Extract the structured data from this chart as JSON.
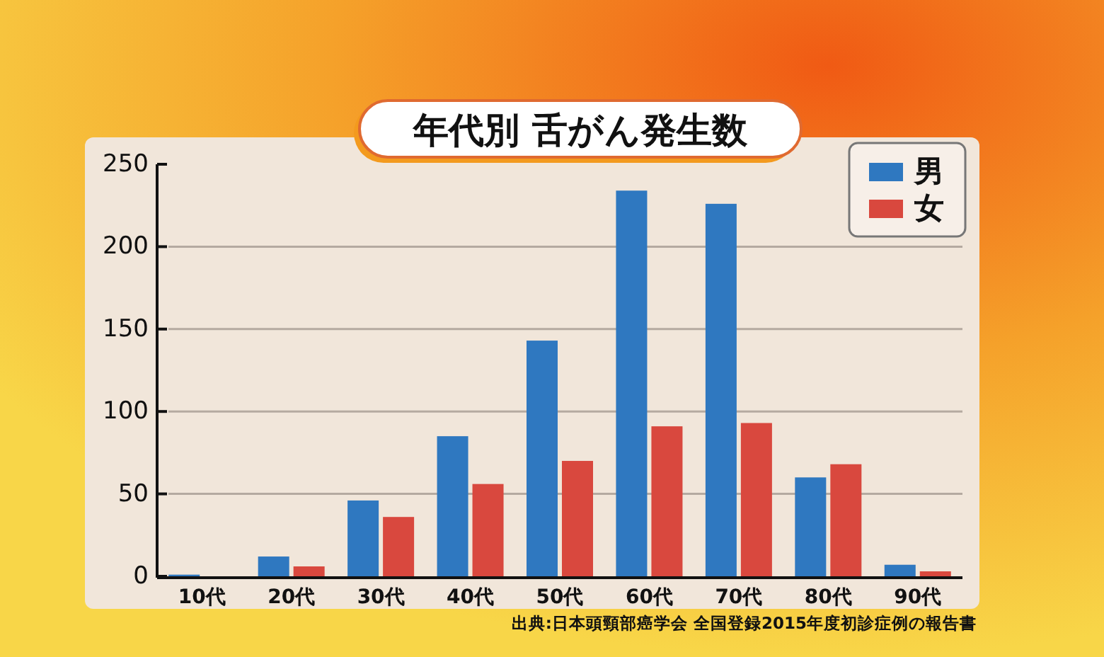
{
  "chart_data": {
    "type": "bar",
    "title": "年代別 舌がん発生数",
    "categories": [
      "10代",
      "20代",
      "30代",
      "40代",
      "50代",
      "60代",
      "70代",
      "80代",
      "90代"
    ],
    "series": [
      {
        "name": "男",
        "color": "#2f78c0",
        "values": [
          1,
          12,
          46,
          85,
          143,
          234,
          226,
          60,
          7
        ]
      },
      {
        "name": "女",
        "color": "#d9483e",
        "values": [
          0,
          6,
          36,
          56,
          70,
          91,
          93,
          68,
          3
        ]
      }
    ],
    "ylim": [
      0,
      250
    ],
    "yticks": [
      0,
      50,
      100,
      150,
      200,
      250
    ],
    "grid": "y",
    "legend": "top right",
    "annotations": [
      "出典:日本頭頸部癌学会  全国登録2015年度初診症例の報告書"
    ]
  }
}
